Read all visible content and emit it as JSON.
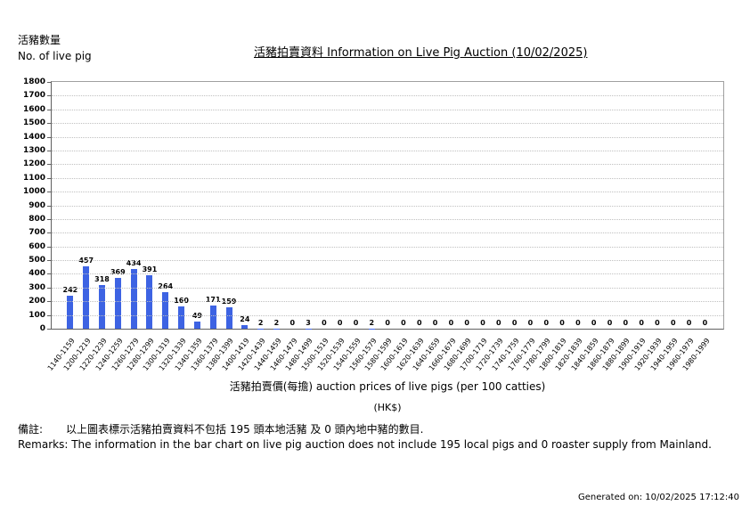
{
  "header": {
    "ylabel_zh": "活豬數量",
    "ylabel_en": "No. of live pig",
    "title": "活豬拍賣資料 Information on Live Pig Auction (10/02/2025)"
  },
  "chart_data": {
    "type": "bar",
    "title": "活豬拍賣資料 Information on Live Pig Auction (10/02/2025)",
    "ylabel": "活豬數量 No. of live pig",
    "xlabel": "活豬拍賣價(每擔) auction prices of live pigs (per 100 catties) (HK$)",
    "ylim": [
      0,
      1800
    ],
    "ytick_step": 100,
    "bar_color": "#3d63e3",
    "grid": "horizontal-dotted",
    "legend": "none",
    "categories": [
      "1140-1159",
      "1200-1219",
      "1220-1239",
      "1240-1259",
      "1260-1279",
      "1280-1299",
      "1300-1319",
      "1320-1339",
      "1340-1359",
      "1360-1379",
      "1380-1399",
      "1400-1419",
      "1420-1439",
      "1440-1459",
      "1460-1479",
      "1480-1499",
      "1500-1519",
      "1520-1539",
      "1540-1559",
      "1560-1579",
      "1580-1599",
      "1600-1619",
      "1620-1639",
      "1640-1659",
      "1660-1679",
      "1680-1699",
      "1700-1719",
      "1720-1739",
      "1740-1759",
      "1760-1779",
      "1780-1799",
      "1800-1819",
      "1820-1839",
      "1840-1859",
      "1860-1879",
      "1880-1899",
      "1900-1919",
      "1920-1939",
      "1940-1959",
      "1960-1979",
      "1980-1999"
    ],
    "values": [
      242,
      457,
      318,
      369,
      434,
      391,
      264,
      160,
      49,
      171,
      159,
      24,
      2,
      2,
      0,
      3,
      0,
      0,
      0,
      2,
      0,
      0,
      0,
      0,
      0,
      0,
      0,
      0,
      0,
      0,
      0,
      0,
      0,
      0,
      0,
      0,
      0,
      0,
      0,
      0,
      0
    ]
  },
  "xaxis": {
    "title": "活豬拍賣價(每擔) auction prices of live pigs (per 100 catties)",
    "unit": "(HK$)"
  },
  "remarks": {
    "zh_label": "備註:",
    "zh_text": "以上圖表標示活豬拍賣資料不包括 195 頭本地活豬 及 0 頭內地中豬的數目.",
    "en": "Remarks: The information in the bar chart on live pig auction does not include 195 local pigs and 0 roaster supply from Mainland."
  },
  "footer": {
    "generated": "Generated on: 10/02/2025 17:12:40"
  }
}
